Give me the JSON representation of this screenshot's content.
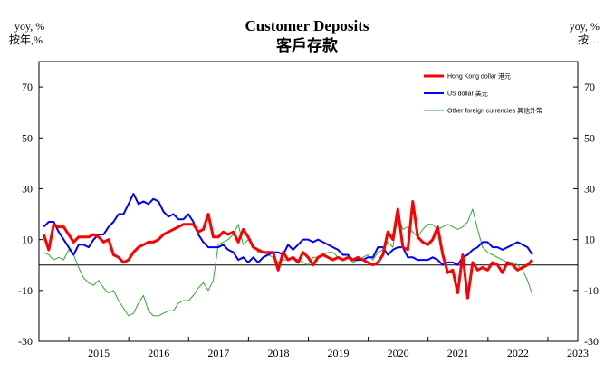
{
  "chart_data": {
    "type": "line",
    "title": "Customer Deposits",
    "subtitle": "客戶存款",
    "left_unit_en": "yoy, %",
    "left_unit_zh": "按年,%",
    "right_unit_en": "yoy, %",
    "right_unit_zh": "按…",
    "ylim": [
      -30,
      80
    ],
    "y_ticks": [
      "70",
      "50",
      "30",
      "10",
      "-10",
      "-30"
    ],
    "y_tick_values": [
      70,
      50,
      30,
      10,
      -10,
      -30
    ],
    "x_ticks": [
      "2015",
      "2016",
      "2017",
      "2018",
      "2019",
      "2020",
      "2021",
      "2022",
      "2023"
    ],
    "x_start": 2014.5,
    "x_end": 2023.5,
    "zero_line": 0,
    "series": [
      {
        "name": "Hong Kong dollar 港元",
        "color": "#ff0000",
        "start": 2014.58,
        "step": 0.0833,
        "values": [
          12,
          6,
          16,
          15,
          15,
          12,
          9,
          11,
          11,
          11,
          12,
          11,
          9,
          10,
          4,
          3,
          1,
          2,
          5,
          7,
          8,
          9,
          9,
          10,
          12,
          13,
          14,
          15,
          16,
          16,
          16,
          13,
          14,
          20,
          11,
          11,
          13,
          12,
          13,
          9,
          14,
          11,
          7,
          6,
          5,
          5,
          5,
          -2,
          5,
          2,
          3,
          1,
          5,
          3,
          0,
          3,
          4,
          3,
          2,
          3,
          2,
          3,
          2,
          3,
          2,
          1,
          0,
          1,
          4,
          13,
          10,
          22,
          7,
          6,
          25,
          11,
          9,
          8,
          10,
          15,
          4,
          -3,
          -2,
          -11,
          4,
          -13,
          1,
          -2,
          -1,
          -2,
          1,
          0,
          -3,
          1,
          0,
          -2,
          -1,
          0,
          2
        ]
      },
      {
        "name": "US dollar 美元",
        "color": "#0000ff",
        "start": 2014.58,
        "step": 0.0833,
        "values": [
          15,
          17,
          17,
          13,
          10,
          7,
          4,
          8,
          8,
          7,
          10,
          12,
          12,
          15,
          17,
          20,
          20,
          24,
          28,
          24,
          25,
          24,
          26,
          25,
          21,
          19,
          20,
          18,
          18,
          20,
          17,
          12,
          9,
          7,
          7,
          7,
          8,
          6,
          5,
          2,
          3,
          1,
          3,
          1,
          3,
          4,
          5,
          5,
          4,
          8,
          6,
          8,
          10,
          10,
          9,
          10,
          9,
          8,
          7,
          6,
          4,
          4,
          2,
          2,
          2,
          3,
          3,
          7,
          7,
          4,
          6,
          7,
          7,
          3,
          3,
          2,
          2,
          2,
          3,
          2,
          0,
          1,
          1,
          0,
          3,
          4,
          6,
          7,
          9,
          9,
          7,
          7,
          6,
          7,
          8,
          9,
          8,
          7,
          4
        ]
      },
      {
        "name": "Other foreign currencies 其他外幣",
        "color": "#2eaa2e",
        "start": 2014.58,
        "step": 0.0833,
        "values": [
          5,
          4,
          2,
          3,
          2,
          6,
          4,
          -1,
          -5,
          -7,
          -8,
          -6,
          -9,
          -11,
          -10,
          -14,
          -17,
          -20,
          -19,
          -15,
          -12,
          -18,
          -20,
          -20,
          -19,
          -18,
          -18,
          -15,
          -14,
          -14,
          -12,
          -9,
          -7,
          -10,
          -6,
          8,
          9,
          10,
          12,
          16,
          8,
          10,
          8,
          5,
          5,
          4,
          3,
          1,
          2,
          2,
          3,
          2,
          1,
          0,
          3,
          3,
          4,
          5,
          5,
          3,
          2,
          3,
          1,
          2,
          3,
          4,
          2,
          5,
          6,
          9,
          7,
          19,
          14,
          15,
          13,
          11,
          14,
          16,
          16,
          14,
          15,
          16,
          15,
          14,
          15,
          17,
          22,
          14,
          7,
          5,
          4,
          3,
          2,
          1,
          1,
          0,
          -2,
          -6,
          -12
        ]
      }
    ]
  }
}
